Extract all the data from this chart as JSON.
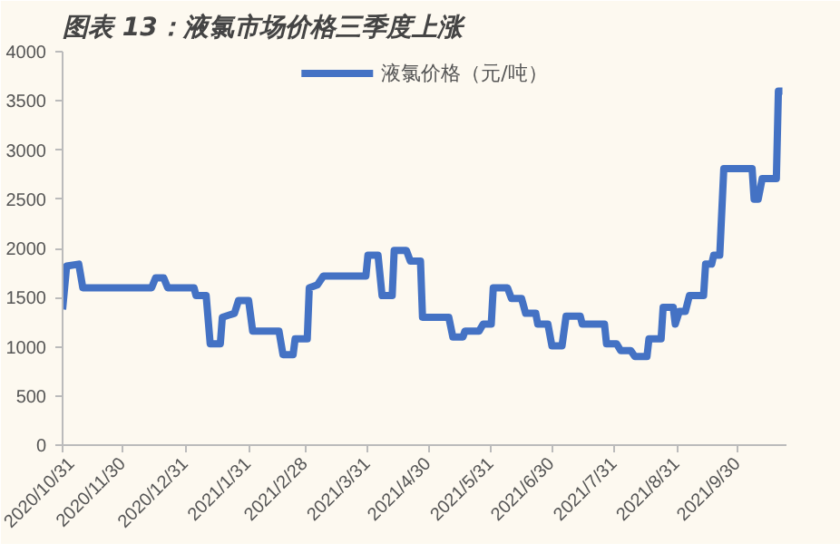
{
  "chart_data": {
    "type": "line",
    "title": "图表 13：液氯市场价格三季度上涨",
    "x": [
      "2020-10-31",
      "2020-11-02",
      "2020-11-08",
      "2020-11-10",
      "2020-12-14",
      "2020-12-16",
      "2020-12-20",
      "2020-12-22",
      "2021-01-04",
      "2021-01-05",
      "2021-01-10",
      "2021-01-12",
      "2021-01-17",
      "2021-01-18",
      "2021-01-24",
      "2021-01-26",
      "2021-01-31",
      "2021-02-02",
      "2021-02-15",
      "2021-02-17",
      "2021-02-22",
      "2021-02-23",
      "2021-03-01",
      "2021-03-02",
      "2021-03-06",
      "2021-03-09",
      "2021-03-30",
      "2021-03-31",
      "2021-04-05",
      "2021-04-07",
      "2021-04-12",
      "2021-04-13",
      "2021-04-19",
      "2021-04-21",
      "2021-04-26",
      "2021-04-27",
      "2021-05-10",
      "2021-05-12",
      "2021-05-17",
      "2021-05-18",
      "2021-05-25",
      "2021-05-27",
      "2021-05-31",
      "2021-06-01",
      "2021-06-08",
      "2021-06-10",
      "2021-06-15",
      "2021-06-17",
      "2021-06-22",
      "2021-06-23",
      "2021-06-28",
      "2021-06-30",
      "2021-07-05",
      "2021-07-07",
      "2021-07-14",
      "2021-07-15",
      "2021-07-26",
      "2021-07-27",
      "2021-08-01",
      "2021-08-03",
      "2021-08-08",
      "2021-08-10",
      "2021-08-16",
      "2021-08-17",
      "2021-08-23",
      "2021-08-24",
      "2021-08-29",
      "2021-08-30",
      "2021-09-01",
      "2021-09-04",
      "2021-09-06",
      "2021-09-13",
      "2021-09-14",
      "2021-09-17",
      "2021-09-18",
      "2021-09-21",
      "2021-09-23",
      "2021-10-07",
      "2021-10-08",
      "2021-10-10",
      "2021-10-12",
      "2021-10-19",
      "2021-10-20",
      "2021-10-22"
    ],
    "series": [
      {
        "name": "液氯价格（元/吨）",
        "color": "#4472c4",
        "values": [
          1380,
          1820,
          1840,
          1600,
          1600,
          1700,
          1700,
          1600,
          1600,
          1520,
          1520,
          1030,
          1030,
          1300,
          1340,
          1470,
          1470,
          1160,
          1160,
          920,
          920,
          1080,
          1080,
          1600,
          1630,
          1720,
          1720,
          1930,
          1930,
          1520,
          1520,
          1980,
          1980,
          1870,
          1870,
          1300,
          1300,
          1100,
          1100,
          1160,
          1160,
          1230,
          1230,
          1600,
          1600,
          1490,
          1490,
          1340,
          1340,
          1230,
          1230,
          1010,
          1010,
          1310,
          1310,
          1230,
          1230,
          1030,
          1030,
          960,
          960,
          900,
          900,
          1080,
          1080,
          1400,
          1400,
          1230,
          1360,
          1360,
          1520,
          1520,
          1840,
          1840,
          1930,
          1930,
          2810,
          2810,
          2500,
          2500,
          2710,
          2710,
          3600,
          3600
        ]
      }
    ],
    "xlim": [
      "2020-10-31",
      "2021-10-24"
    ],
    "xticks": [
      {
        "value": "2020-10-31",
        "label": "2020/10/31"
      },
      {
        "value": "2020-11-30",
        "label": "2020/11/30"
      },
      {
        "value": "2020-12-31",
        "label": "2020/12/31"
      },
      {
        "value": "2021-01-31",
        "label": "2021/1/31"
      },
      {
        "value": "2021-02-28",
        "label": "2021/2/28"
      },
      {
        "value": "2021-03-31",
        "label": "2021/3/31"
      },
      {
        "value": "2021-04-30",
        "label": "2021/4/30"
      },
      {
        "value": "2021-05-31",
        "label": "2021/5/31"
      },
      {
        "value": "2021-06-30",
        "label": "2021/6/30"
      },
      {
        "value": "2021-07-31",
        "label": "2021/7/31"
      },
      {
        "value": "2021-08-31",
        "label": "2021/8/31"
      },
      {
        "value": "2021-09-30",
        "label": "2021/9/30"
      }
    ],
    "ylim": [
      0,
      4000
    ],
    "yticks": [
      0,
      500,
      1000,
      1500,
      2000,
      2500,
      3000,
      3500,
      4000
    ],
    "grid": false,
    "legend": "top",
    "marker": "none",
    "line_style": "solid"
  }
}
